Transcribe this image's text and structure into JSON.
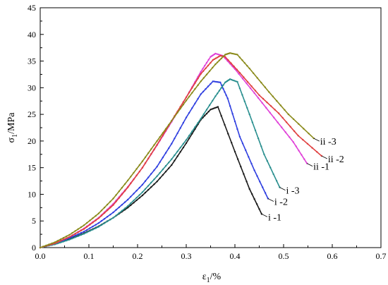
{
  "chart_data": {
    "type": "line",
    "xlabel_main": "ε",
    "xlabel_sub": "1",
    "xlabel_unit": "/%",
    "ylabel_main": "σ",
    "ylabel_sub": "1",
    "ylabel_unit": "/MPa",
    "xlim": [
      0.0,
      0.7
    ],
    "ylim": [
      0,
      45
    ],
    "xticks": [
      "0.0",
      "0.1",
      "0.2",
      "0.3",
      "0.4",
      "0.5",
      "0.6",
      "0.7"
    ],
    "yticks": [
      "0",
      "5",
      "10",
      "15",
      "20",
      "25",
      "30",
      "35",
      "40",
      "45"
    ],
    "grid": false,
    "series": [
      {
        "label": "i -1",
        "color": "#1a1a1a",
        "label_at": [
          0.455,
          6.3
        ],
        "points": [
          [
            0.0,
            0
          ],
          [
            0.03,
            0.7
          ],
          [
            0.06,
            1.6
          ],
          [
            0.09,
            2.7
          ],
          [
            0.12,
            4.0
          ],
          [
            0.15,
            5.6
          ],
          [
            0.18,
            7.5
          ],
          [
            0.21,
            9.8
          ],
          [
            0.24,
            12.4
          ],
          [
            0.27,
            15.5
          ],
          [
            0.3,
            19.6
          ],
          [
            0.33,
            24.0
          ],
          [
            0.35,
            25.9
          ],
          [
            0.365,
            26.4
          ],
          [
            0.4,
            18.0
          ],
          [
            0.43,
            11.0
          ],
          [
            0.455,
            6.3
          ]
        ]
      },
      {
        "label": "i -2",
        "color": "#2f3fe0",
        "label_at": [
          0.468,
          9.2
        ],
        "points": [
          [
            0.0,
            0
          ],
          [
            0.03,
            0.7
          ],
          [
            0.06,
            1.8
          ],
          [
            0.09,
            3.0
          ],
          [
            0.12,
            4.6
          ],
          [
            0.15,
            6.6
          ],
          [
            0.18,
            9.0
          ],
          [
            0.21,
            11.8
          ],
          [
            0.24,
            15.2
          ],
          [
            0.27,
            19.5
          ],
          [
            0.3,
            24.4
          ],
          [
            0.33,
            28.8
          ],
          [
            0.355,
            31.2
          ],
          [
            0.37,
            31.0
          ],
          [
            0.385,
            28.0
          ],
          [
            0.41,
            20.8
          ],
          [
            0.44,
            14.5
          ],
          [
            0.468,
            9.2
          ]
        ]
      },
      {
        "label": "i -3",
        "color": "#2a8f8f",
        "label_at": [
          0.492,
          11.3
        ],
        "points": [
          [
            0.0,
            0
          ],
          [
            0.03,
            0.6
          ],
          [
            0.06,
            1.5
          ],
          [
            0.09,
            2.6
          ],
          [
            0.12,
            3.9
          ],
          [
            0.15,
            5.6
          ],
          [
            0.18,
            7.8
          ],
          [
            0.21,
            10.4
          ],
          [
            0.24,
            13.4
          ],
          [
            0.27,
            16.6
          ],
          [
            0.3,
            20.2
          ],
          [
            0.33,
            24.2
          ],
          [
            0.36,
            28.4
          ],
          [
            0.38,
            31.0
          ],
          [
            0.39,
            31.6
          ],
          [
            0.405,
            31.1
          ],
          [
            0.43,
            25.0
          ],
          [
            0.46,
            17.5
          ],
          [
            0.492,
            11.3
          ]
        ]
      },
      {
        "label": "ii -1",
        "color": "#e040d8",
        "label_at": [
          0.548,
          15.8
        ],
        "points": [
          [
            0.0,
            0
          ],
          [
            0.03,
            0.8
          ],
          [
            0.06,
            2.0
          ],
          [
            0.09,
            3.6
          ],
          [
            0.12,
            5.6
          ],
          [
            0.15,
            8.2
          ],
          [
            0.18,
            11.4
          ],
          [
            0.21,
            15.0
          ],
          [
            0.24,
            19.2
          ],
          [
            0.27,
            23.6
          ],
          [
            0.3,
            28.2
          ],
          [
            0.33,
            33.0
          ],
          [
            0.35,
            35.8
          ],
          [
            0.36,
            36.4
          ],
          [
            0.375,
            36.0
          ],
          [
            0.4,
            33.5
          ],
          [
            0.44,
            29.0
          ],
          [
            0.48,
            24.4
          ],
          [
            0.52,
            19.8
          ],
          [
            0.548,
            15.8
          ]
        ]
      },
      {
        "label": "ii -2",
        "color": "#e04040",
        "label_at": [
          0.578,
          17.2
        ],
        "points": [
          [
            0.0,
            0
          ],
          [
            0.03,
            0.8
          ],
          [
            0.06,
            2.0
          ],
          [
            0.09,
            3.5
          ],
          [
            0.12,
            5.5
          ],
          [
            0.15,
            8.0
          ],
          [
            0.18,
            11.3
          ],
          [
            0.21,
            15.0
          ],
          [
            0.24,
            19.3
          ],
          [
            0.27,
            23.8
          ],
          [
            0.3,
            28.2
          ],
          [
            0.33,
            32.6
          ],
          [
            0.355,
            35.2
          ],
          [
            0.37,
            36.0
          ],
          [
            0.38,
            35.8
          ],
          [
            0.41,
            32.8
          ],
          [
            0.45,
            28.6
          ],
          [
            0.49,
            25.2
          ],
          [
            0.53,
            21.0
          ],
          [
            0.578,
            17.2
          ]
        ]
      },
      {
        "label": "ii -3",
        "color": "#8a8a1a",
        "label_at": [
          0.562,
          20.5
        ],
        "points": [
          [
            0.0,
            0
          ],
          [
            0.03,
            1.0
          ],
          [
            0.06,
            2.4
          ],
          [
            0.09,
            4.2
          ],
          [
            0.12,
            6.4
          ],
          [
            0.15,
            9.2
          ],
          [
            0.18,
            12.6
          ],
          [
            0.21,
            16.2
          ],
          [
            0.24,
            20.0
          ],
          [
            0.27,
            23.8
          ],
          [
            0.3,
            27.6
          ],
          [
            0.33,
            31.2
          ],
          [
            0.36,
            34.4
          ],
          [
            0.38,
            36.2
          ],
          [
            0.39,
            36.5
          ],
          [
            0.405,
            36.2
          ],
          [
            0.43,
            33.6
          ],
          [
            0.47,
            29.2
          ],
          [
            0.51,
            25.0
          ],
          [
            0.562,
            20.5
          ]
        ]
      }
    ]
  }
}
